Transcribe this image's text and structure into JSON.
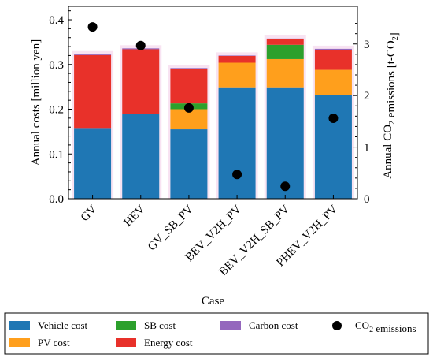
{
  "chart_data": {
    "type": "bar",
    "stacked": true,
    "categories": [
      "GV",
      "HEV",
      "GV_SB_PV",
      "BEV_V2H_PV",
      "BEV_V2H_SB_PV",
      "PHEV_V2H_PV"
    ],
    "xlabel": "Case",
    "ylabel": "Annual costs [million yen]",
    "ylabel_right": "Annual CO₂ emissions [t-CO₂]",
    "ylim": [
      0,
      0.43
    ],
    "ylim_right": [
      0,
      3.73
    ],
    "yticks": [
      "0.0",
      "0.1",
      "0.2",
      "0.3",
      "0.4"
    ],
    "yticks_right": [
      "0",
      "1",
      "2",
      "3"
    ],
    "series": [
      {
        "name": "Vehicle cost",
        "color": "#1f77b4",
        "values": [
          0.158,
          0.19,
          0.155,
          0.249,
          0.249,
          0.232
        ]
      },
      {
        "name": "PV cost",
        "color": "#ff9f1c",
        "values": [
          0.0,
          0.0,
          0.045,
          0.055,
          0.063,
          0.056
        ]
      },
      {
        "name": "SB cost",
        "color": "#2ca02c",
        "values": [
          0.0,
          0.0,
          0.013,
          0.0,
          0.032,
          0.0
        ]
      },
      {
        "name": "Energy cost",
        "color": "#e8312a",
        "values": [
          0.163,
          0.144,
          0.077,
          0.015,
          0.013,
          0.045
        ]
      },
      {
        "name": "Carbon cost",
        "color": "#9467bd",
        "values": [
          0.002,
          0.002,
          0.002,
          0.001,
          0.001,
          0.002
        ]
      }
    ],
    "scatter": {
      "name": "CO₂ emissions",
      "axis": "right",
      "values": [
        3.33,
        2.97,
        1.76,
        0.47,
        0.24,
        1.56
      ]
    },
    "legend": {
      "placement": "bottom",
      "entries": [
        "Vehicle cost",
        "SB cost",
        "Carbon cost",
        "CO₂ emissions",
        "PV cost",
        "Energy cost"
      ]
    },
    "grid": false
  }
}
